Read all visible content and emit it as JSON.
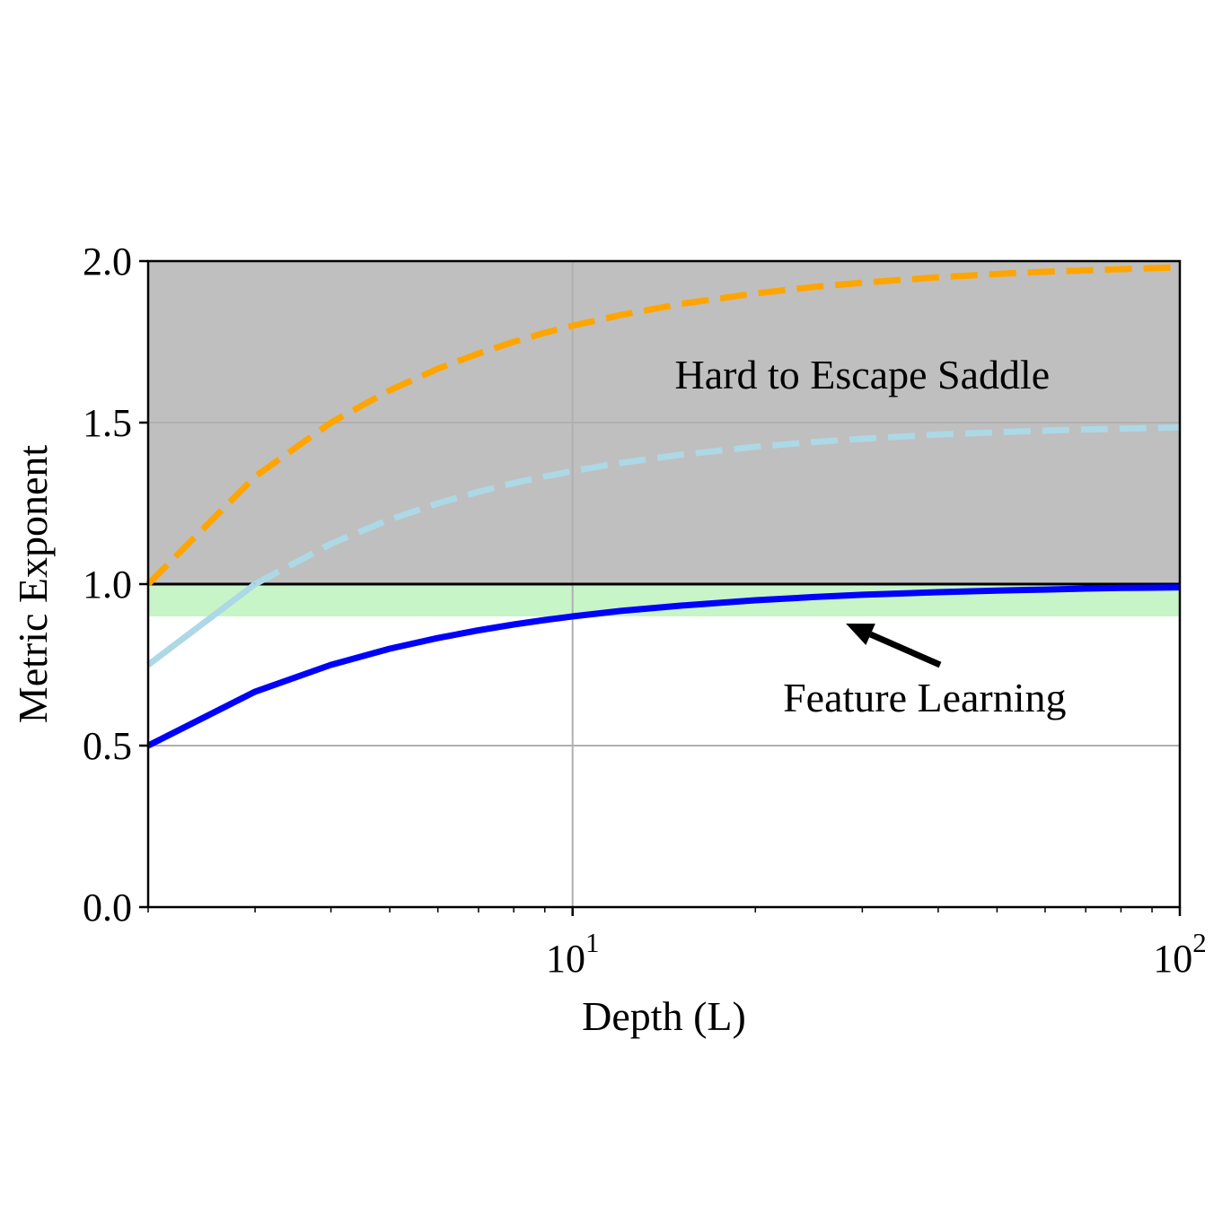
{
  "chart_data": {
    "type": "line",
    "xlabel": "Depth (L)",
    "ylabel": "Metric Exponent",
    "xscale": "log",
    "xlim": [
      2,
      100
    ],
    "ylim": [
      0,
      2
    ],
    "grid": true,
    "x_major_ticks": [
      {
        "value": 10,
        "base": "10",
        "exp": "1"
      },
      {
        "value": 100,
        "base": "10",
        "exp": "2"
      }
    ],
    "y_ticks": [
      {
        "value": 0,
        "label": "0.0"
      },
      {
        "value": 0.5,
        "label": "0.5"
      },
      {
        "value": 1,
        "label": "1.0"
      },
      {
        "value": 1.5,
        "label": "1.5"
      },
      {
        "value": 2,
        "label": "2.0"
      }
    ],
    "regions": [
      {
        "name": "saddle-region",
        "y0": 1.0,
        "y1": 2.0,
        "color": "#bfbfbf"
      },
      {
        "name": "feature-learning-band",
        "y0": 0.9,
        "y1": 1.0,
        "color": "#c8f5c8"
      }
    ],
    "hline": {
      "y": 1.0,
      "color": "#000000"
    },
    "x": [
      2,
      3,
      4,
      5,
      6,
      7,
      8,
      9,
      10,
      12,
      15,
      20,
      25,
      30,
      40,
      50,
      60,
      70,
      80,
      90,
      100
    ],
    "series": [
      {
        "style": "dashed",
        "color": "#ffa500",
        "values": [
          1.0,
          1.333,
          1.5,
          1.6,
          1.667,
          1.714,
          1.75,
          1.778,
          1.8,
          1.833,
          1.867,
          1.9,
          1.92,
          1.933,
          1.95,
          1.96,
          1.967,
          1.971,
          1.975,
          1.978,
          1.98
        ]
      },
      {
        "style": "mixed",
        "color": "#add8e6",
        "solid_until_y": 1.0,
        "values": [
          0.75,
          1.0,
          1.125,
          1.2,
          1.25,
          1.286,
          1.313,
          1.333,
          1.35,
          1.375,
          1.4,
          1.425,
          1.44,
          1.45,
          1.463,
          1.47,
          1.475,
          1.479,
          1.481,
          1.483,
          1.485
        ]
      },
      {
        "style": "solid",
        "color": "#0000ff",
        "values": [
          0.5,
          0.667,
          0.75,
          0.8,
          0.833,
          0.857,
          0.875,
          0.889,
          0.9,
          0.917,
          0.933,
          0.95,
          0.96,
          0.967,
          0.975,
          0.98,
          0.983,
          0.986,
          0.988,
          0.989,
          0.99
        ]
      }
    ],
    "annotations": [
      {
        "name": "saddle-annotation",
        "text": "Hard to Escape Saddle",
        "x": 30,
        "y": 1.65
      },
      {
        "name": "feature-learning-annotation",
        "text": "Feature Learning",
        "x": 38,
        "y": 0.65,
        "arrow_to": [
          28,
          0.9
        ]
      }
    ]
  }
}
